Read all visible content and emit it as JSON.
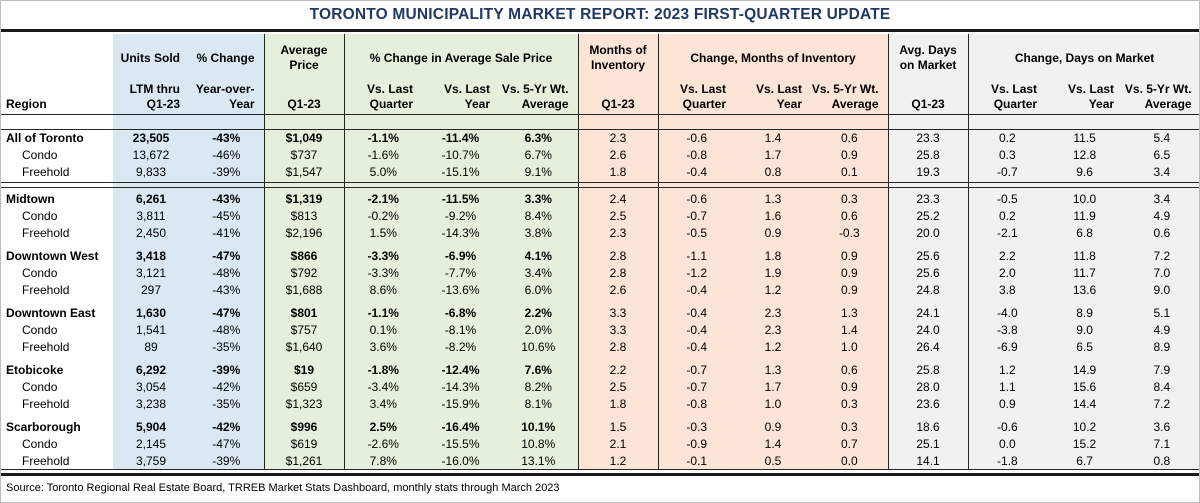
{
  "title": "TORONTO MUNICIPALITY MARKET REPORT: 2023 FIRST-QUARTER UPDATE",
  "source": "Source: Toronto Regional Real Estate Board, TRREB Market Stats Dashboard, monthly stats through March 2023",
  "colors": {
    "title_navy": "#1f3864",
    "units_block_blue": "#dbe8f4",
    "price_block_green": "#e4f0dc",
    "inventory_block_peach": "#fce4d6",
    "days_block_gray": "#f1f1f1",
    "rule_black": "#1a1a1a"
  },
  "header": {
    "region": "Region",
    "units": [
      "Units Sold",
      "LTM thru",
      "Q1-23"
    ],
    "pct": [
      "% Change",
      "Year-over-",
      "Year"
    ],
    "price": [
      "Average",
      "Price",
      "Q1-23"
    ],
    "sale_group": "% Change in Average Sale Price",
    "moi": [
      "Months of",
      "Inventory",
      "Q1-23"
    ],
    "moi_group": "Change, Months of Inventory",
    "adom": [
      "Avg. Days",
      "on Market",
      "Q1-23"
    ],
    "dom_group": "Change, Days on Market",
    "vs": [
      [
        "Vs. Last",
        "Quarter"
      ],
      [
        "Vs. Last",
        "Year"
      ],
      [
        "Vs. 5-Yr Wt.",
        "Average"
      ]
    ]
  },
  "table": {
    "groups": [
      {
        "rows": [
          {
            "label": "All of Toronto",
            "values": [
              "23,505",
              "-43%",
              "$1,049",
              "-1.1%",
              "-11.4%",
              "6.3%",
              "2.3",
              "-0.6",
              "1.4",
              "0.6",
              "23.3",
              "0.2",
              "11.5",
              "5.4"
            ]
          },
          {
            "label": "Condo",
            "values": [
              "13,672",
              "-46%",
              "$737",
              "-1.6%",
              "-10.7%",
              "6.7%",
              "2.6",
              "-0.8",
              "1.7",
              "0.9",
              "25.8",
              "0.3",
              "12.8",
              "6.5"
            ]
          },
          {
            "label": "Freehold",
            "values": [
              "9,833",
              "-39%",
              "$1,547",
              "5.0%",
              "-15.1%",
              "9.1%",
              "1.8",
              "-0.4",
              "0.8",
              "0.1",
              "19.3",
              "-0.7",
              "9.6",
              "3.4"
            ]
          }
        ]
      },
      {
        "rows": [
          {
            "label": "Midtown",
            "values": [
              "6,261",
              "-43%",
              "$1,319",
              "-2.1%",
              "-11.5%",
              "3.3%",
              "2.4",
              "-0.6",
              "1.3",
              "0.3",
              "23.3",
              "-0.5",
              "10.0",
              "3.4"
            ]
          },
          {
            "label": "Condo",
            "values": [
              "3,811",
              "-45%",
              "$813",
              "-0.2%",
              "-9.2%",
              "8.4%",
              "2.5",
              "-0.7",
              "1.6",
              "0.6",
              "25.2",
              "0.2",
              "11.9",
              "4.9"
            ]
          },
          {
            "label": "Freehold",
            "values": [
              "2,450",
              "-41%",
              "$2,196",
              "1.5%",
              "-14.3%",
              "3.8%",
              "2.3",
              "-0.5",
              "0.9",
              "-0.3",
              "20.0",
              "-2.1",
              "6.8",
              "0.6"
            ]
          }
        ]
      },
      {
        "rows": [
          {
            "label": "Downtown West",
            "values": [
              "3,418",
              "-47%",
              "$866",
              "-3.3%",
              "-6.9%",
              "4.1%",
              "2.8",
              "-1.1",
              "1.8",
              "0.9",
              "25.6",
              "2.2",
              "11.8",
              "7.2"
            ]
          },
          {
            "label": "Condo",
            "values": [
              "3,121",
              "-48%",
              "$792",
              "-3.3%",
              "-7.7%",
              "3.4%",
              "2.8",
              "-1.2",
              "1.9",
              "0.9",
              "25.6",
              "2.0",
              "11.7",
              "7.0"
            ]
          },
          {
            "label": "Freehold",
            "values": [
              "297",
              "-43%",
              "$1,688",
              "8.6%",
              "-13.6%",
              "6.0%",
              "2.6",
              "-0.4",
              "1.2",
              "0.9",
              "24.8",
              "3.8",
              "13.6",
              "9.0"
            ]
          }
        ]
      },
      {
        "rows": [
          {
            "label": "Downtown East",
            "values": [
              "1,630",
              "-47%",
              "$801",
              "-1.1%",
              "-6.8%",
              "2.2%",
              "3.3",
              "-0.4",
              "2.3",
              "1.3",
              "24.1",
              "-4.0",
              "8.9",
              "5.1"
            ]
          },
          {
            "label": "Condo",
            "values": [
              "1,541",
              "-48%",
              "$757",
              "0.1%",
              "-8.1%",
              "2.0%",
              "3.3",
              "-0.4",
              "2.3",
              "1.4",
              "24.0",
              "-3.8",
              "9.0",
              "4.9"
            ]
          },
          {
            "label": "Freehold",
            "values": [
              "89",
              "-35%",
              "$1,640",
              "3.6%",
              "-8.2%",
              "10.6%",
              "2.8",
              "-0.4",
              "1.2",
              "1.0",
              "26.4",
              "-6.9",
              "6.5",
              "8.9"
            ]
          }
        ]
      },
      {
        "rows": [
          {
            "label": "Etobicoke",
            "values": [
              "6,292",
              "-39%",
              "$19",
              "-1.8%",
              "-12.4%",
              "7.6%",
              "2.2",
              "-0.7",
              "1.3",
              "0.6",
              "25.8",
              "1.2",
              "14.9",
              "7.9"
            ]
          },
          {
            "label": "Condo",
            "values": [
              "3,054",
              "-42%",
              "$659",
              "-3.4%",
              "-14.3%",
              "8.2%",
              "2.5",
              "-0.7",
              "1.7",
              "0.9",
              "28.0",
              "1.1",
              "15.6",
              "8.4"
            ]
          },
          {
            "label": "Freehold",
            "values": [
              "3,238",
              "-35%",
              "$1,323",
              "3.4%",
              "-15.9%",
              "8.1%",
              "1.8",
              "-0.8",
              "1.0",
              "0.3",
              "23.6",
              "0.9",
              "14.4",
              "7.2"
            ]
          }
        ]
      },
      {
        "rows": [
          {
            "label": "Scarborough",
            "values": [
              "5,904",
              "-42%",
              "$996",
              "2.5%",
              "-16.4%",
              "10.1%",
              "1.5",
              "-0.3",
              "0.9",
              "0.3",
              "18.6",
              "-0.6",
              "10.2",
              "3.6"
            ]
          },
          {
            "label": "Condo",
            "values": [
              "2,145",
              "-47%",
              "$619",
              "-2.6%",
              "-15.5%",
              "10.8%",
              "2.1",
              "-0.9",
              "1.4",
              "0.7",
              "25.1",
              "0.0",
              "15.2",
              "7.1"
            ]
          },
          {
            "label": "Freehold",
            "values": [
              "3,759",
              "-39%",
              "$1,261",
              "7.8%",
              "-16.0%",
              "13.1%",
              "1.2",
              "-0.1",
              "0.5",
              "0.0",
              "14.1",
              "-1.8",
              "6.7",
              "0.8"
            ]
          }
        ]
      }
    ]
  }
}
